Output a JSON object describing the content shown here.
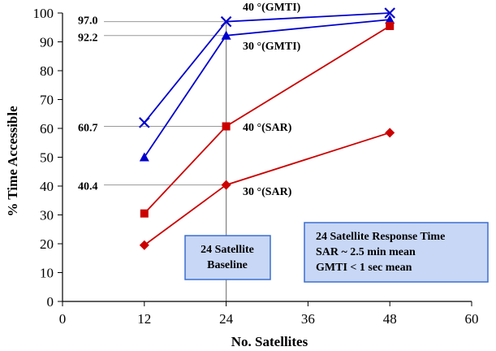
{
  "chart_data": {
    "type": "line",
    "xlabel": "No. Satellites",
    "ylabel": "% Time Accessible",
    "xlim": [
      0,
      60
    ],
    "ylim": [
      0,
      100
    ],
    "xticks": [
      "0",
      "12",
      "24",
      "36",
      "48",
      "60"
    ],
    "yticks": [
      "0",
      "10",
      "20",
      "30",
      "40",
      "50",
      "60",
      "70",
      "80",
      "90",
      "100"
    ],
    "series": [
      {
        "name": "40 °(GMTI)",
        "color": "#0000cc",
        "marker": "x",
        "x": [
          12,
          24,
          48
        ],
        "y": [
          62.0,
          97.0,
          100.0
        ]
      },
      {
        "name": "30 °(GMTI)",
        "color": "#0000cc",
        "marker": "triangle",
        "x": [
          12,
          24,
          48
        ],
        "y": [
          50.0,
          92.2,
          97.7
        ]
      },
      {
        "name": "40 °(SAR)",
        "color": "#cc0000",
        "marker": "square",
        "x": [
          12,
          24,
          48
        ],
        "y": [
          30.5,
          60.7,
          95.5
        ]
      },
      {
        "name": "30 °(SAR)",
        "color": "#cc0000",
        "marker": "diamond",
        "x": [
          12,
          24,
          48
        ],
        "y": [
          19.5,
          40.4,
          58.5
        ]
      }
    ],
    "annotations": {
      "value_labels": [
        "97.0",
        "92.2",
        "60.7",
        "40.4"
      ],
      "baseline_box": {
        "line1": "24 Satellite",
        "line2": "Baseline"
      },
      "response_box": {
        "line1": "24 Satellite Response Time",
        "line2": "SAR ~ 2.5 min mean",
        "line3": "GMTI < 1 sec mean"
      }
    },
    "grid": false,
    "box_fill": "#c8d7f5",
    "box_stroke": "#3b6fd1"
  }
}
